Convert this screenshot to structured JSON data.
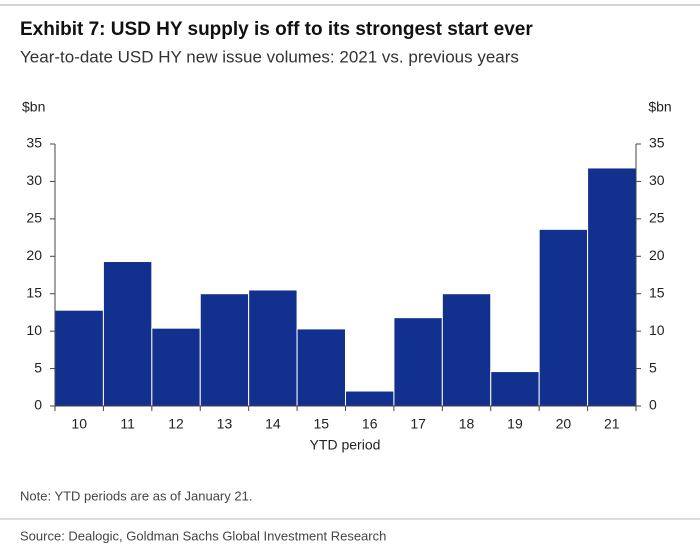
{
  "chart_data": {
    "type": "bar",
    "title": "Exhibit 7: USD HY supply is off to its strongest start ever",
    "subtitle": "Year-to-date USD HY new issue volumes: 2021 vs. previous years",
    "y_label": "$bn",
    "y2_label": "$bn",
    "x_label": "YTD period",
    "categories": [
      "10",
      "11",
      "12",
      "13",
      "14",
      "15",
      "16",
      "17",
      "18",
      "19",
      "20",
      "21"
    ],
    "values": [
      12.8,
      19.3,
      10.4,
      15.0,
      15.5,
      10.3,
      2.0,
      11.8,
      15.0,
      4.6,
      23.6,
      31.8
    ],
    "color": "#12308e",
    "ylim": [
      0,
      35
    ],
    "yticks": [
      0,
      5,
      10,
      15,
      20,
      25,
      30,
      35
    ],
    "y2lim": [
      0,
      35
    ],
    "y2ticks": [
      0,
      5,
      10,
      15,
      20,
      25,
      30,
      35
    ],
    "note": "Note: YTD periods are as of January 21.",
    "source": "Source: Dealogic, Goldman Sachs Global Investment Research"
  }
}
